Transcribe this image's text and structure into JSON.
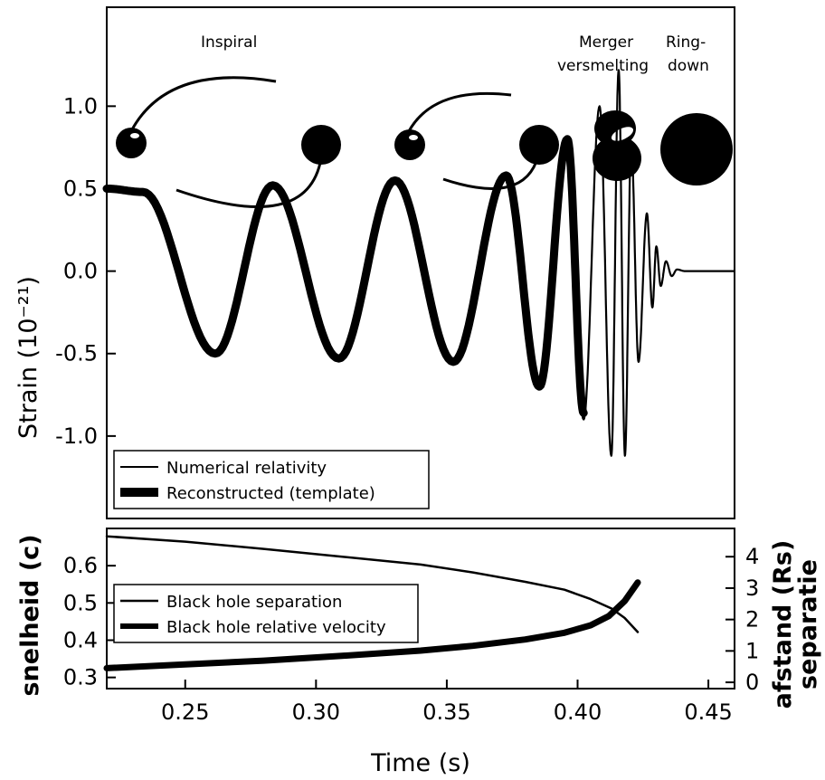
{
  "stages": {
    "inspiral": "Inspiral",
    "merger": "Merger",
    "merger_translation": "versmelting",
    "ringdown_line1": "Ring-",
    "ringdown_line2": "down"
  },
  "chart_data": [
    {
      "type": "line",
      "ylabel": "Strain (10⁻²¹)",
      "xlim": [
        0.22,
        0.46
      ],
      "ylim": [
        -1.5,
        1.6
      ],
      "yticks": [
        "1.0",
        "0.5",
        "0.0",
        "-0.5",
        "-1.0"
      ],
      "yticks_values": [
        1.0,
        0.5,
        0.0,
        -0.5,
        -1.0
      ],
      "series": [
        {
          "name": "Numerical relativity",
          "style": "thin",
          "x": [
            0.22,
            0.2338,
            0.2615,
            0.2835,
            0.3087,
            0.3302,
            0.3525,
            0.3727,
            0.3854,
            0.3961,
            0.4023,
            0.4084,
            0.4129,
            0.4157,
            0.4181,
            0.4205,
            0.4233,
            0.4265,
            0.4286,
            0.4301,
            0.4318,
            0.4338,
            0.436,
            0.438,
            0.441,
            0.46
          ],
          "y": [
            0.5,
            0.48,
            -0.5,
            0.52,
            -0.53,
            0.55,
            -0.55,
            0.58,
            -0.7,
            0.8,
            -0.9,
            1.0,
            -1.12,
            1.22,
            -1.12,
            0.78,
            -0.55,
            0.35,
            -0.22,
            0.15,
            -0.09,
            0.06,
            -0.03,
            0.01,
            0.0,
            0.0
          ]
        },
        {
          "name": "Reconstructed (template)",
          "style": "thick",
          "x": [
            0.22,
            0.2338,
            0.2615,
            0.2835,
            0.3087,
            0.3302,
            0.3525,
            0.3727,
            0.3854,
            0.3961,
            0.4023
          ],
          "y": [
            0.5,
            0.48,
            -0.5,
            0.52,
            -0.53,
            0.55,
            -0.55,
            0.58,
            -0.7,
            0.8,
            -0.86
          ]
        }
      ],
      "legend": [
        "Numerical relativity",
        "Reconstructed (template)"
      ],
      "legend_position": "bottom-left"
    },
    {
      "type": "line",
      "xlabel": "Time (s)",
      "ylabel": "snelheid (c)",
      "ylabel2_line1": "afstand (Rs)",
      "ylabel2_line2": "separatie",
      "xlim": [
        0.22,
        0.46
      ],
      "ylim": [
        0.27,
        0.7
      ],
      "ylim2": [
        -0.2,
        4.9
      ],
      "xticks": [
        "0.25",
        "0.30",
        "0.35",
        "0.40",
        "0.45"
      ],
      "xticks_values": [
        0.25,
        0.3,
        0.35,
        0.4,
        0.45
      ],
      "yticks": [
        "0.6",
        "0.5",
        "0.4",
        "0.3"
      ],
      "yticks_values": [
        0.6,
        0.5,
        0.4,
        0.3
      ],
      "yticks2": [
        "4",
        "3",
        "2",
        "1",
        "0"
      ],
      "yticks2_values": [
        4,
        3,
        2,
        1,
        0
      ],
      "series": [
        {
          "name": "Black hole separation",
          "axis": "right",
          "style": "thin",
          "x": [
            0.22,
            0.25,
            0.28,
            0.31,
            0.34,
            0.36,
            0.38,
            0.395,
            0.405,
            0.413,
            0.418,
            0.423
          ],
          "y": [
            4.65,
            4.48,
            4.25,
            4.0,
            3.75,
            3.5,
            3.2,
            2.95,
            2.65,
            2.35,
            2.05,
            1.6
          ]
        },
        {
          "name": "Black hole relative velocity",
          "axis": "left",
          "style": "thick",
          "x": [
            0.22,
            0.25,
            0.28,
            0.31,
            0.34,
            0.36,
            0.38,
            0.395,
            0.405,
            0.412,
            0.418,
            0.423
          ],
          "y": [
            0.325,
            0.335,
            0.345,
            0.358,
            0.372,
            0.385,
            0.402,
            0.42,
            0.44,
            0.465,
            0.505,
            0.555
          ]
        }
      ],
      "legend": [
        "Black hole separation",
        "Black hole relative velocity"
      ],
      "legend_position": "center-left"
    }
  ]
}
